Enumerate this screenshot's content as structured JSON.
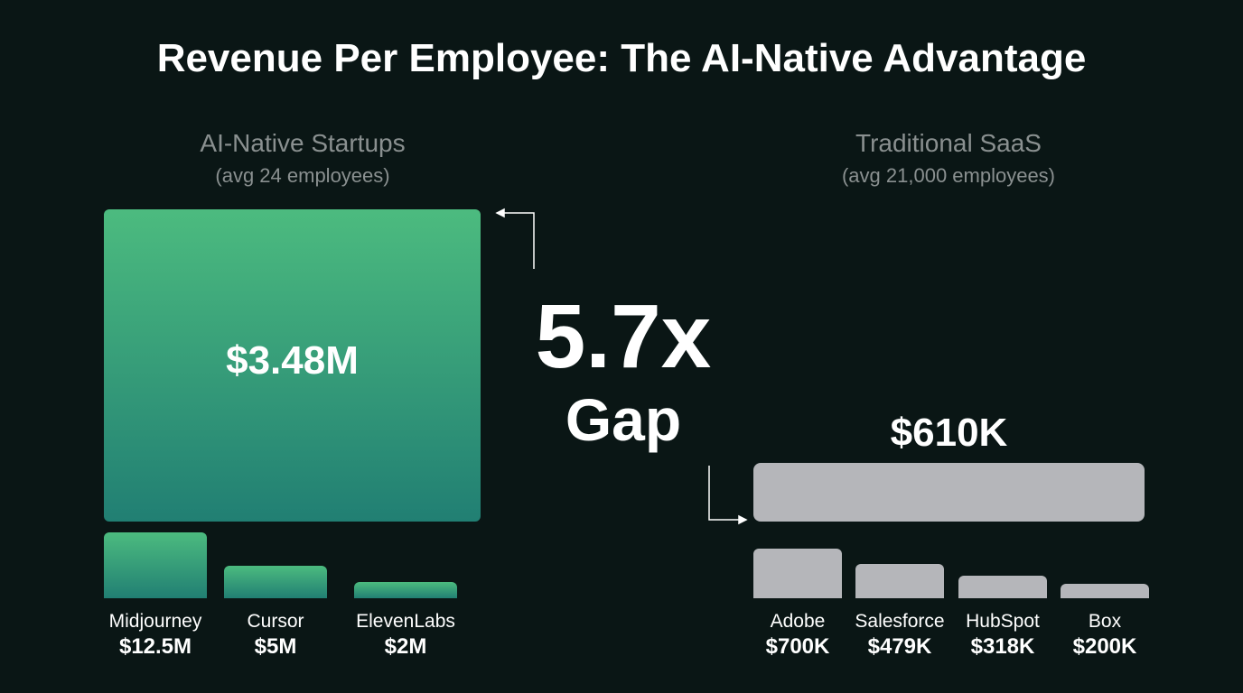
{
  "chart_data": {
    "type": "bar",
    "title": "Revenue Per Employee: The AI-Native Advantage",
    "groups": [
      {
        "name": "AI-Native Startups",
        "subtitle": "(avg 24 employees)",
        "average_label": "$3.48M",
        "average_value": 3480000,
        "color": "#3aa57a",
        "categories": [
          "Midjourney",
          "Cursor",
          "ElevenLabs"
        ],
        "values": [
          12500000,
          5000000,
          2000000
        ],
        "value_labels": [
          "$12.5M",
          "$5M",
          "$2M"
        ]
      },
      {
        "name": "Traditional SaaS",
        "subtitle": "(avg 21,000 employees)",
        "average_label": "$610K",
        "average_value": 610000,
        "color": "#b5b6ba",
        "categories": [
          "Adobe",
          "Salesforce",
          "HubSpot",
          "Box"
        ],
        "values": [
          700000,
          479000,
          318000,
          200000
        ],
        "value_labels": [
          "$700K",
          "$479K",
          "$318K",
          "$200K"
        ]
      }
    ],
    "annotation": {
      "multiple": "5.7x",
      "label": "Gap"
    }
  }
}
